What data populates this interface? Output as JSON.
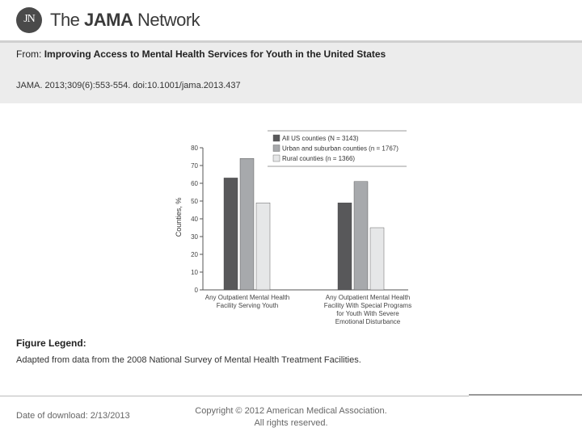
{
  "header": {
    "logo_initials": "JN",
    "brand_prefix": "The ",
    "brand_bold": "JAMA",
    "brand_suffix": " Network"
  },
  "article": {
    "from_label": "From:",
    "title": "Improving Access to Mental Health Services for Youth in the United States",
    "citation": "JAMA. 2013;309(6):553-554. doi:10.1001/jama.2013.437"
  },
  "figure": {
    "legend_title": "Figure Legend:",
    "legend_text": "Adapted from data from the 2008 National Survey of Mental Health Treatment Facilities."
  },
  "footer": {
    "download": "Date of download:  2/13/2013",
    "copyright_line1": "Copyright © 2012 American Medical Association.",
    "copyright_line2": "All rights reserved."
  },
  "chart_data": {
    "type": "bar",
    "title": "",
    "xlabel": "",
    "ylabel": "Counties, %",
    "ylim": [
      0,
      80
    ],
    "yticks": [
      0,
      10,
      20,
      30,
      40,
      50,
      60,
      70,
      80
    ],
    "grid": false,
    "legend_position": "top-right",
    "categories": [
      [
        "Any Outpatient Mental Health",
        "Facility Serving Youth"
      ],
      [
        "Any Outpatient Mental Health",
        "Facility With Special Programs",
        "for Youth With Severe",
        "Emotional Disturbance"
      ]
    ],
    "series": [
      {
        "name": "All US counties (N = 3143)",
        "color": "#58585a",
        "values": [
          63,
          49
        ]
      },
      {
        "name": "Urban and suburban counties (n = 1767)",
        "color": "#a7a9ac",
        "values": [
          74,
          61
        ]
      },
      {
        "name": "Rural counties (n = 1366)",
        "color": "#e6e7e8",
        "values": [
          49,
          35
        ]
      }
    ]
  }
}
